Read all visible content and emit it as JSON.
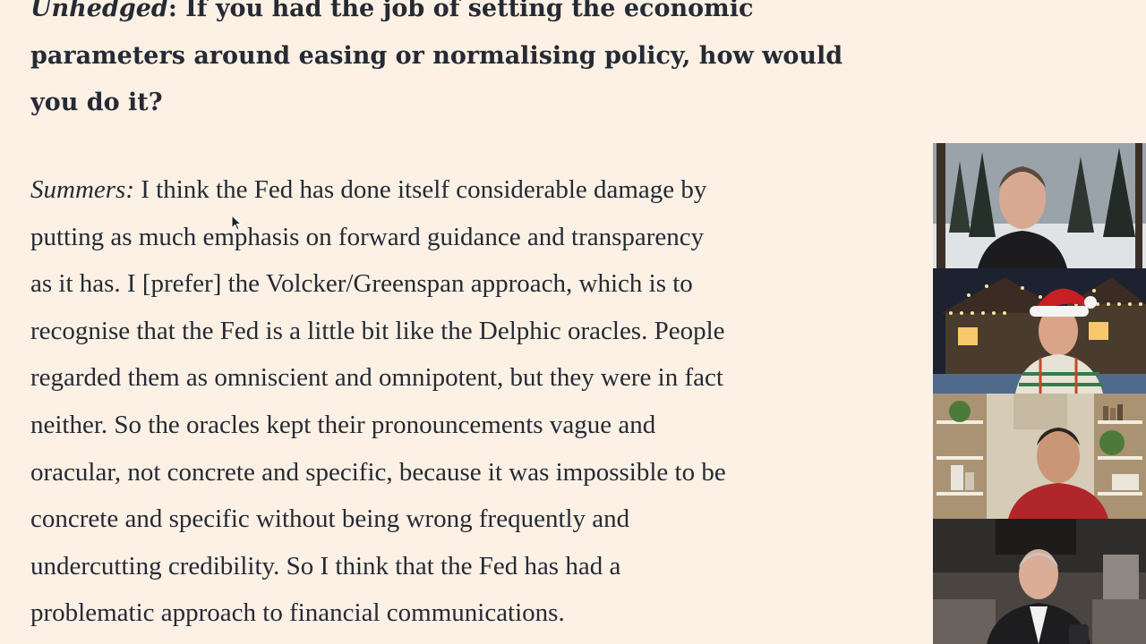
{
  "question": {
    "speaker": "Unhedged",
    "text": ": If you had the job of setting the economic parameters around easing or normalising policy, how would you do it?"
  },
  "answer": {
    "speaker": "Summers:",
    "lines": [
      "I think the Fed has done itself considerable damage by",
      "putting as much emphasis on forward guidance and transparency",
      "as it has. I [prefer] the Volcker/Greenspan approach, which is to",
      "recognise that the Fed is a little bit like the Delphic oracles. People",
      "regarded them as omniscient and omnipotent, but they were in fact",
      "neither. So the oracles kept their pronouncements vague and",
      "oracular, not concrete and specific, because it was impossible to be",
      "concrete and specific without being wrong frequently and",
      "undercutting credibility. So I think that the Fed has had a",
      "problematic approach to financial communications."
    ]
  },
  "video_call": {
    "participants": [
      {
        "icon": "participant-1-video"
      },
      {
        "icon": "participant-2-video"
      },
      {
        "icon": "participant-3-video"
      },
      {
        "icon": "participant-4-video"
      }
    ]
  },
  "colors": {
    "background": "#fdf1e6",
    "text": "#262a33"
  }
}
